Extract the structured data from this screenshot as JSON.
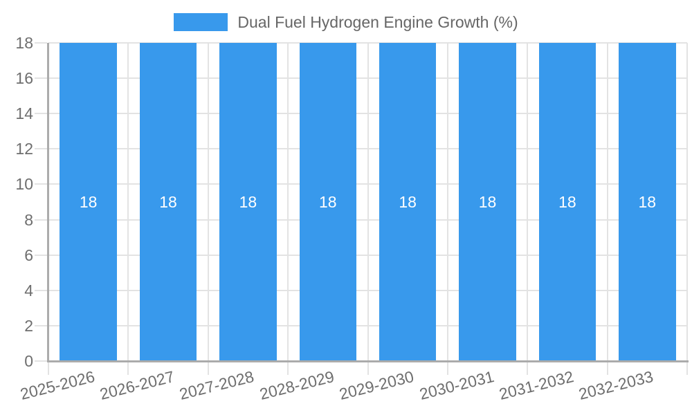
{
  "legend": {
    "position": "top",
    "label": "Dual Fuel Hydrogen Engine Growth (%)"
  },
  "chart_data": {
    "type": "bar",
    "title": "Dual Fuel Hydrogen Engine Growth (%)",
    "categories": [
      "2025-2026",
      "2026-2027",
      "2027-2028",
      "2028-2029",
      "2029-2030",
      "2030-2031",
      "2031-2032",
      "2032-2033"
    ],
    "series": [
      {
        "name": "Dual Fuel Hydrogen Engine Growth (%)",
        "values": [
          18,
          18,
          18,
          18,
          18,
          18,
          18,
          18
        ]
      }
    ],
    "bar_labels": [
      "18",
      "18",
      "18",
      "18",
      "18",
      "18",
      "18",
      "18"
    ],
    "xlabel": "",
    "ylabel": "",
    "ylim": [
      0,
      18
    ],
    "yticks": [
      0,
      2,
      4,
      6,
      8,
      10,
      12,
      14,
      16,
      18
    ],
    "grid": true,
    "legend_position": "top",
    "colors": {
      "bar": "#3899ec",
      "grid": "#e3e3e3",
      "axis": "#ababab",
      "tick_text": "#6e6e6e",
      "legend_text": "#666666",
      "bar_label_text": "#ffffff"
    }
  }
}
